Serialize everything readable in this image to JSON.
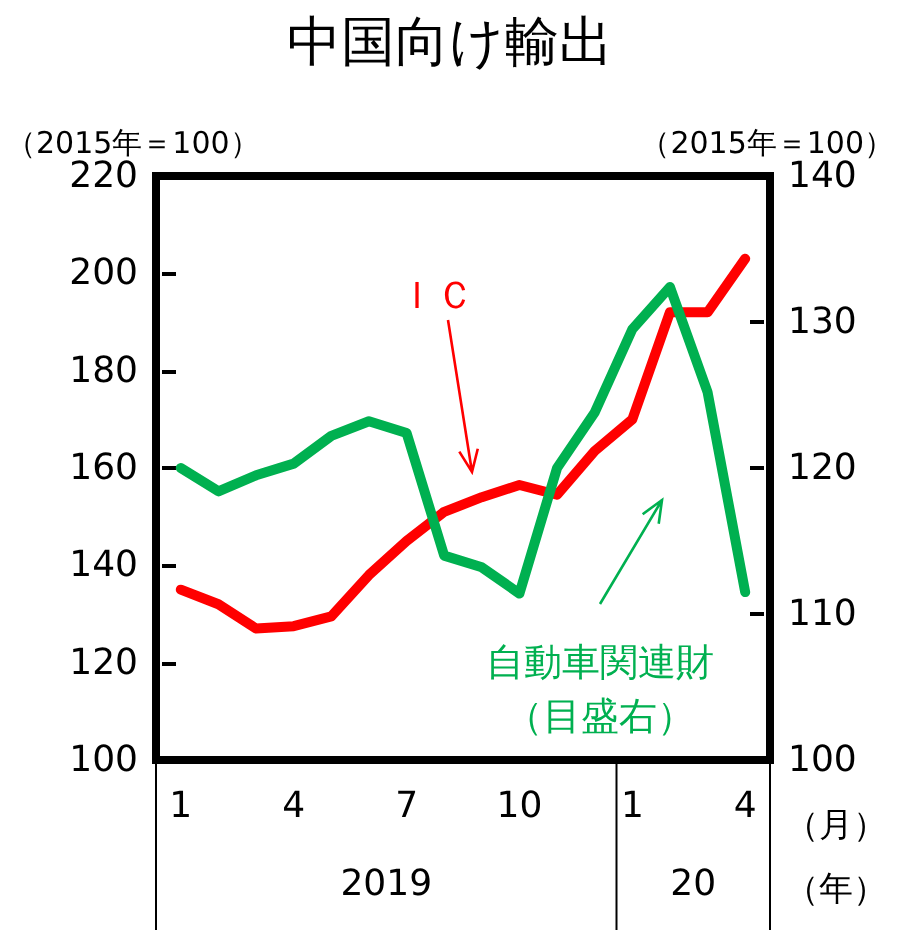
{
  "chart_data": {
    "type": "line",
    "title": "中国向け輸出",
    "ylabel": "（2015年＝100）",
    "y2label": "（2015年＝100）",
    "xlabel": "（月）",
    "annotations": [
      "2019",
      "20",
      "（年）"
    ],
    "categories": [
      "1",
      null,
      null,
      "4",
      null,
      null,
      "7",
      null,
      null,
      "10",
      null,
      null,
      "1",
      null,
      null,
      "4"
    ],
    "series": [
      {
        "name": "ＩＣ",
        "color": "#ff0000",
        "values": [
          135,
          132,
          127,
          127.5,
          129.5,
          138,
          145,
          151,
          154,
          156.5,
          154.5,
          163.5,
          170,
          192,
          192,
          203
        ]
      },
      {
        "name": "自動車関連財（目盛右）",
        "color": "#00b050",
        "axis": "y2",
        "values": [
          120,
          118.4,
          119.5,
          120.3,
          122.2,
          123.2,
          122.4,
          114,
          113.2,
          111.4,
          120,
          123.8,
          129.5,
          132.4,
          125.2,
          111.5
        ]
      }
    ],
    "ylim": [
      100,
      220
    ],
    "yticks": [
      100,
      120,
      140,
      160,
      180,
      200,
      220
    ],
    "y2lim": [
      100,
      140
    ],
    "y2ticks": [
      100,
      110,
      120,
      130,
      140
    ],
    "grid": false,
    "legend": false,
    "marker": "none",
    "line_style": "solid"
  }
}
